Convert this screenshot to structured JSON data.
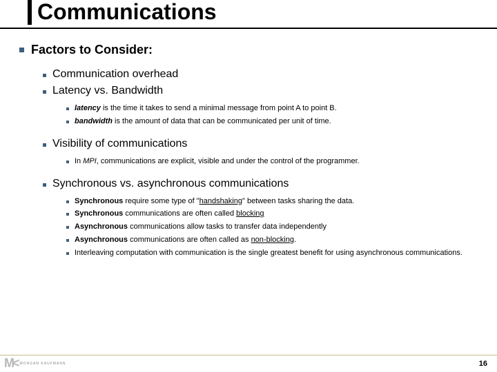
{
  "title": "Communications",
  "heading": "Factors to Consider:",
  "items": {
    "i1": "Communication overhead",
    "i2": "Latency vs. Bandwidth",
    "i2a_pre": "latency",
    "i2a_post": " is the time it takes to send a minimal message from point A to point B.",
    "i2b_pre": "bandwidth",
    "i2b_post": " is the amount of data that can be communicated per unit of time.",
    "i3": "Visibility of communications",
    "i3a_pre": "In ",
    "i3a_mid": "MPI",
    "i3a_post": ", communications are explicit, visible and under the control of the programmer.",
    "i4": "Synchronous vs. asynchronous communications",
    "i4a_b1": "Synchronous",
    "i4a_t1": " require some type of \"",
    "i4a_u": "handshaking",
    "i4a_t2": "\" between tasks sharing the data.",
    "i4b_b": "Synchronous",
    "i4b_t": " communications are often called ",
    "i4b_u": "blocking",
    "i4c_b": "Asynchronous",
    "i4c_t": " communications allow tasks to transfer data independently",
    "i4d_b": "Asynchronous",
    "i4d_t": " communications are often called as ",
    "i4d_u": "non-blocking",
    "i4d_t2": ".",
    "i4e": "Interleaving computation with communication is the single greatest benefit for using asynchronous communications."
  },
  "logo_text": "MORGAN KAUFMANN",
  "page_number": "16",
  "colors": {
    "bullet": "#3e5f7e",
    "accent_line": "#c9b98a"
  }
}
